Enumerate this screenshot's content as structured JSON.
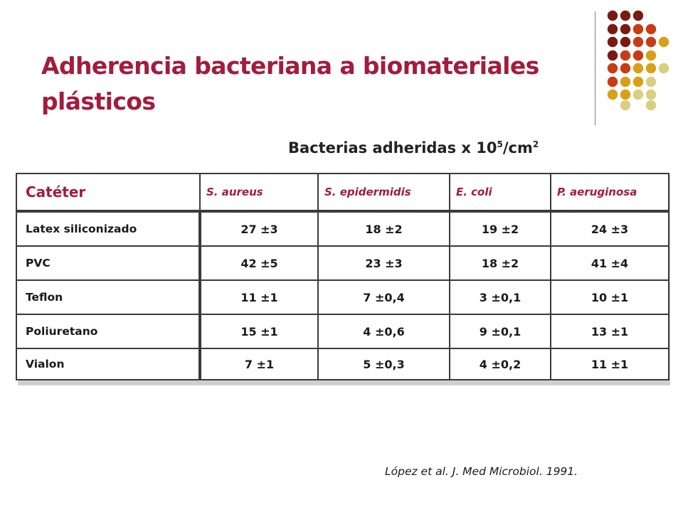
{
  "slide": {
    "title": "Adherencia bacteriana a biomateriales plásticos",
    "subtitle_base": "Bacterias adheridas x 10",
    "subtitle_exp1": "5",
    "subtitle_mid": "/cm",
    "subtitle_exp2": "2",
    "citation": "López et al. J. Med Microbiol. 1991."
  },
  "colors": {
    "title": "#a31c3c",
    "dot_dark": "#7a1a14",
    "dot_red": "#c83c14",
    "dot_orange": "#d8a018",
    "dot_light": "#d8d080"
  },
  "table": {
    "headers": [
      "Catéter",
      "S. aureus",
      "S. epidermidis",
      "E. coli",
      "P. aeruginosa"
    ],
    "rows": [
      {
        "label": "Latex siliconizado",
        "values": [
          "27 ±3",
          "18 ±2",
          "19 ±2",
          "24 ±3"
        ]
      },
      {
        "label": "PVC",
        "values": [
          "42 ±5",
          "23 ±3",
          "18 ±2",
          "41 ±4"
        ]
      },
      {
        "label": "Teflon",
        "values": [
          "11 ±1",
          "7 ±0,4",
          "3 ±0,1",
          "10 ±1"
        ]
      },
      {
        "label": "Poliuretano",
        "values": [
          "15 ±1",
          "4 ±0,6",
          "9 ±0,1",
          "13 ±1"
        ]
      },
      {
        "label": "Vialon",
        "values": [
          "7 ±1",
          "5 ±0,3",
          "4 ±0,2",
          "11 ±1"
        ]
      }
    ]
  }
}
